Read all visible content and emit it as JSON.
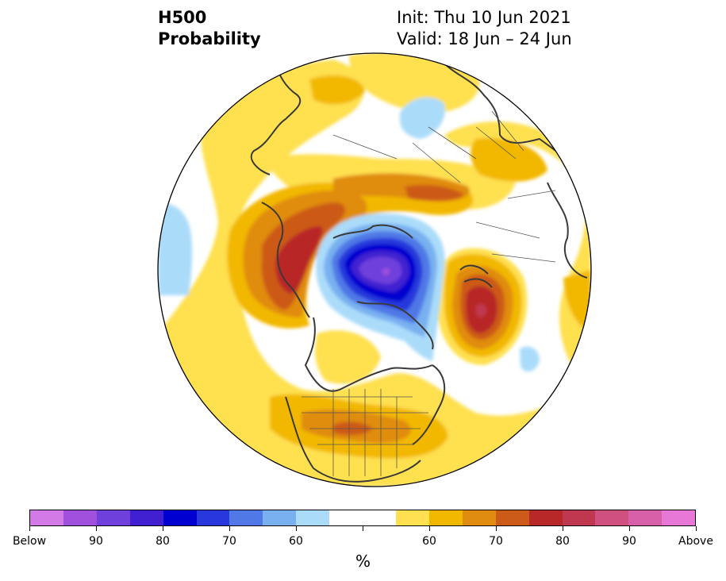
{
  "title": {
    "left_line1": "H500",
    "left_line2": "Probability",
    "right_line1": "Init: Thu 10 Jun 2021",
    "right_line2": "Valid: 18 Jun – 24 Jun"
  },
  "colorbar": {
    "colors": [
      "#d47ae6",
      "#a050dc",
      "#7040dc",
      "#4020d0",
      "#0000d0",
      "#2838dc",
      "#5078e6",
      "#78b0f0",
      "#aadcfa",
      "#ffffff",
      "#ffffff",
      "#ffe050",
      "#f2b800",
      "#e08c10",
      "#cc5a18",
      "#b82828",
      "#c03850",
      "#d05080",
      "#d860a8",
      "#e878d8"
    ],
    "tick_labels": [
      "Below",
      "90",
      "80",
      "70",
      "60",
      "60",
      "70",
      "80",
      "90",
      "Above"
    ],
    "unit": "%"
  },
  "map": {
    "features": [
      "northern-hemisphere-polar-projection",
      "below-normal-center-arctic",
      "above-normal-north-atlantic",
      "above-normal-western-canada",
      "above-normal-central-usa"
    ]
  }
}
